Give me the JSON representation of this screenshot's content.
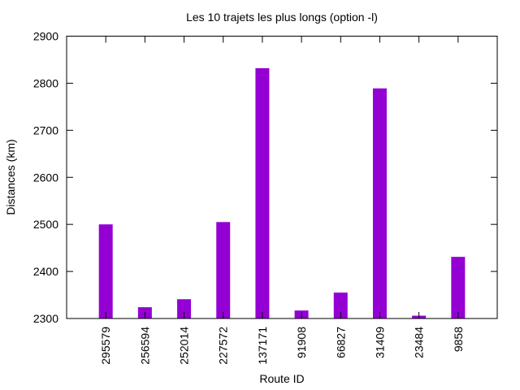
{
  "chart_data": {
    "type": "bar",
    "title": "Les 10 trajets les plus longs (option -l)",
    "xlabel": "Route ID",
    "ylabel": "Distances (km)",
    "ylim": [
      2300,
      2900
    ],
    "yticks": [
      2300,
      2400,
      2500,
      2600,
      2700,
      2800,
      2900
    ],
    "grid": false,
    "categories": [
      "295579",
      "256594",
      "252014",
      "227572",
      "137171",
      "91908",
      "66827",
      "31409",
      "23484",
      "9858"
    ],
    "values": [
      2500,
      2324,
      2341,
      2505,
      2832,
      2317,
      2355,
      2789,
      2306,
      2431
    ],
    "colors": {
      "bar": "#9400d3",
      "axis": "#000000"
    }
  }
}
